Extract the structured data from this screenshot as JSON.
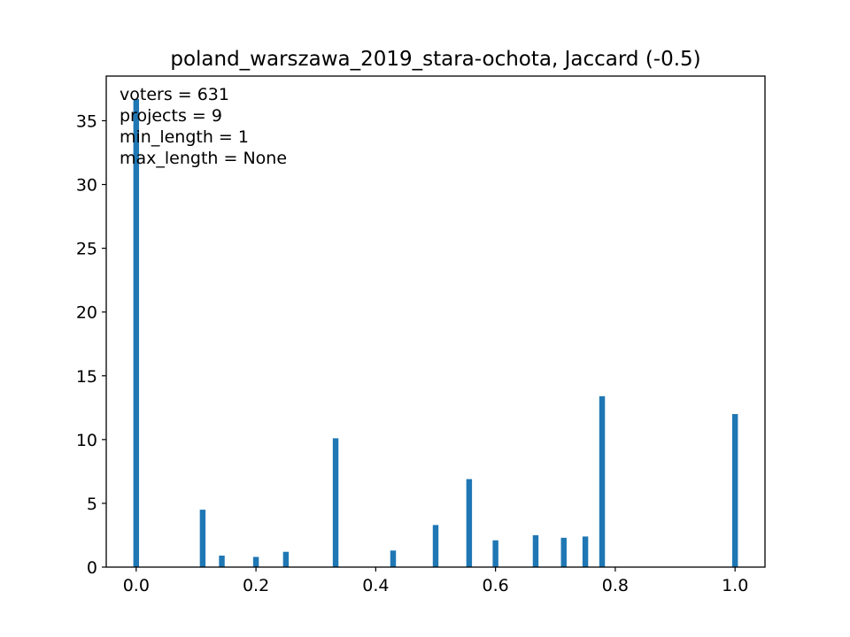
{
  "chart_data": {
    "type": "bar",
    "title": "poland_warszawa_2019_stara-ochota, Jaccard (-0.5)",
    "xlabel": "",
    "ylabel": "",
    "xlim": [
      -0.05,
      1.05
    ],
    "ylim": [
      0,
      38.5
    ],
    "grid": false,
    "bar_color": "#1f77b4",
    "bar_width": 0.0095,
    "x_ticks": [
      0.0,
      0.2,
      0.4,
      0.6,
      0.8,
      1.0
    ],
    "x_tick_labels": [
      "0.0",
      "0.2",
      "0.4",
      "0.6",
      "0.8",
      "1.0"
    ],
    "y_ticks": [
      0,
      5,
      10,
      15,
      20,
      25,
      30,
      35
    ],
    "y_tick_labels": [
      "0",
      "5",
      "10",
      "15",
      "20",
      "25",
      "30",
      "35"
    ],
    "x": [
      0.0,
      0.111,
      0.143,
      0.2,
      0.25,
      0.333,
      0.429,
      0.5,
      0.556,
      0.6,
      0.667,
      0.714,
      0.75,
      0.778,
      1.0
    ],
    "values": [
      36.7,
      4.5,
      0.9,
      0.8,
      1.2,
      10.1,
      1.3,
      3.3,
      6.9,
      2.1,
      2.5,
      2.3,
      2.4,
      13.4,
      12.0
    ],
    "annotations": [
      "voters = 631",
      "projects = 9",
      "min_length = 1",
      "max_length = None"
    ]
  }
}
